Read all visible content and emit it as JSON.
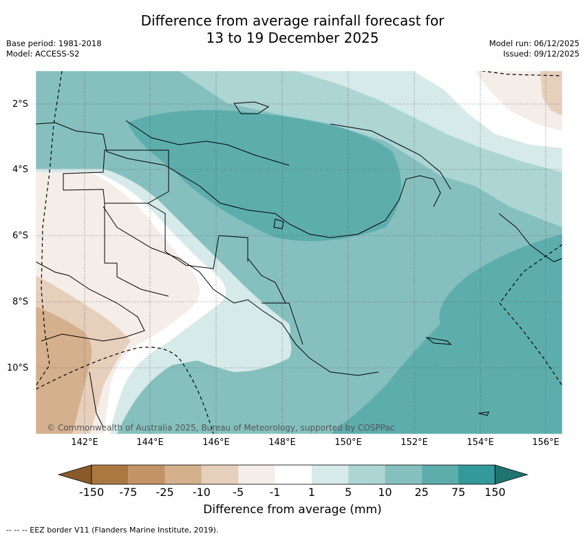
{
  "title_line1": "Difference from average rainfall forecast for",
  "title_line2": "13 to 19 December 2025",
  "meta": {
    "base_period": "Base period: 1981-2018",
    "model": "Model: ACCESS-S2",
    "model_run": "Model run: 06/12/2025",
    "issued": "Issued: 09/12/2025"
  },
  "lat_labels": [
    "2°S",
    "4°S",
    "6°S",
    "8°S",
    "10°S"
  ],
  "lon_labels": [
    "142°E",
    "144°E",
    "146°E",
    "148°E",
    "150°E",
    "152°E",
    "154°E",
    "156°E"
  ],
  "copyright": "© Commonwealth of Australia 2025, Bureau of Meteorology, supported by COSPPac",
  "colorbar": {
    "ticks": [
      "-150",
      "-75",
      "-25",
      "-10",
      "-5",
      "-1",
      "1",
      "5",
      "10",
      "25",
      "75",
      "150"
    ],
    "colors": [
      "#8a5a2b",
      "#ac7841",
      "#c39366",
      "#d4b08d",
      "#e6cfbb",
      "#f4ede8",
      "#ffffff",
      "#d6eae9",
      "#acd5d4",
      "#85c0bf",
      "#5dadad",
      "#33999a",
      "#1f7371"
    ],
    "title": "Difference from average (mm)"
  },
  "footnote": "--  --  -- EEZ border V11 (Flanders Marine Institute, 2019)."
}
